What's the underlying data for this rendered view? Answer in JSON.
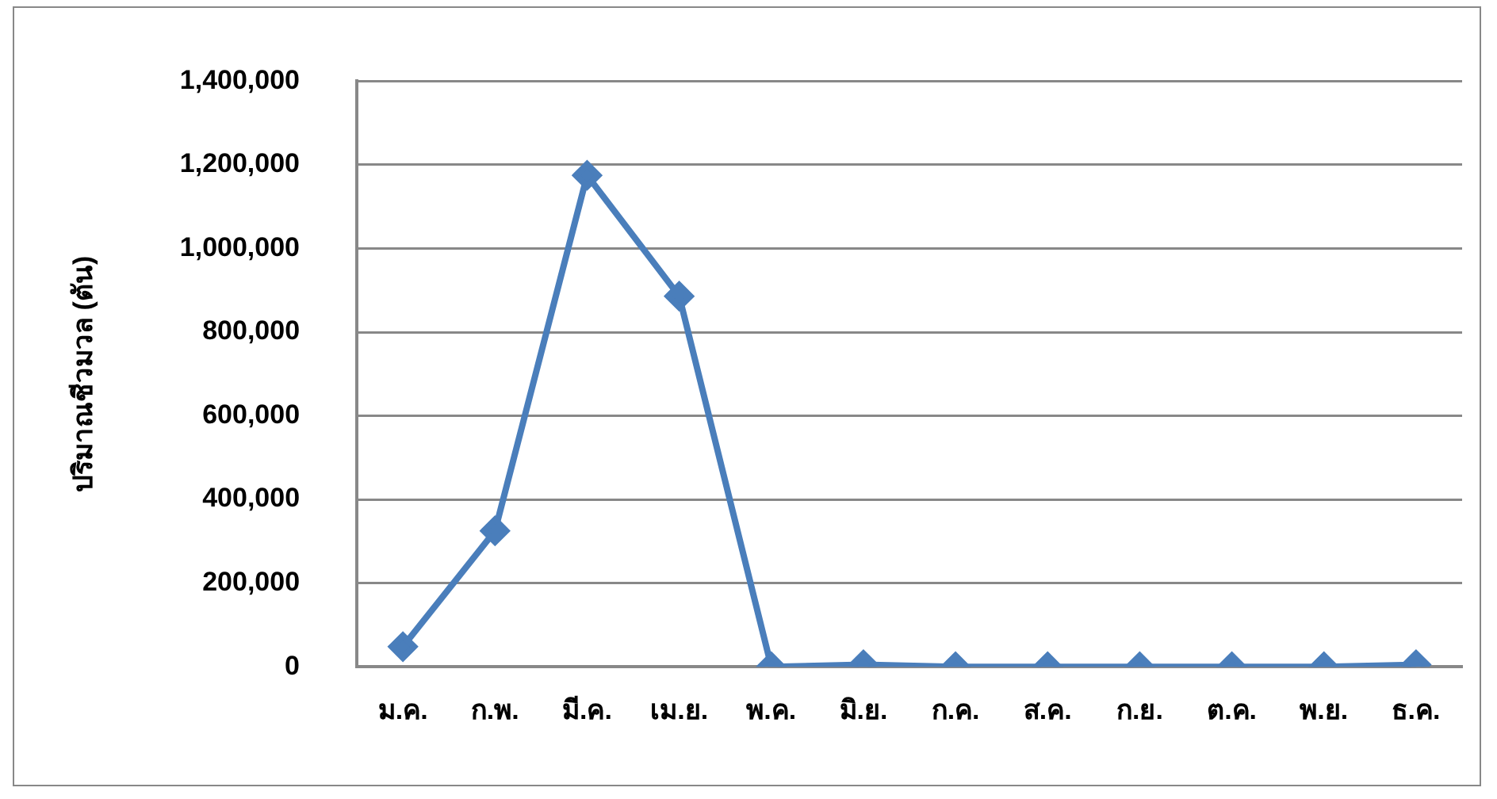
{
  "chart_data": {
    "type": "line",
    "ylabel": "ปริมาณชีวมวล (ตัน)",
    "categories": [
      "ม.ค.",
      "ก.พ.",
      "มี.ค.",
      "เม.ย.",
      "พ.ค.",
      "มิ.ย.",
      "ก.ค.",
      "ส.ค.",
      "ก.ย.",
      "ต.ค.",
      "พ.ย.",
      "ธ.ค."
    ],
    "series": [
      {
        "color": "#4a7ebb",
        "values": [
          48000,
          325000,
          1175000,
          886000,
          0,
          5000,
          0,
          0,
          0,
          0,
          0,
          5000
        ]
      }
    ],
    "ylim": [
      0,
      1400000
    ],
    "yticks": [
      0,
      {
        "value": 200000,
        "label": "200,000"
      },
      {
        "value": 400000,
        "label": "400,000"
      },
      {
        "value": 600000,
        "label": "600,000"
      },
      {
        "value": 800000,
        "label": "800,000"
      },
      {
        "value": 1000000,
        "label": "1,000,000"
      },
      {
        "value": 1200000,
        "label": "1,200,000"
      },
      {
        "value": 1400000,
        "label": "1,400,000"
      }
    ],
    "grid": "y",
    "legend": false,
    "marker": "diamond",
    "line_style": "solid"
  }
}
